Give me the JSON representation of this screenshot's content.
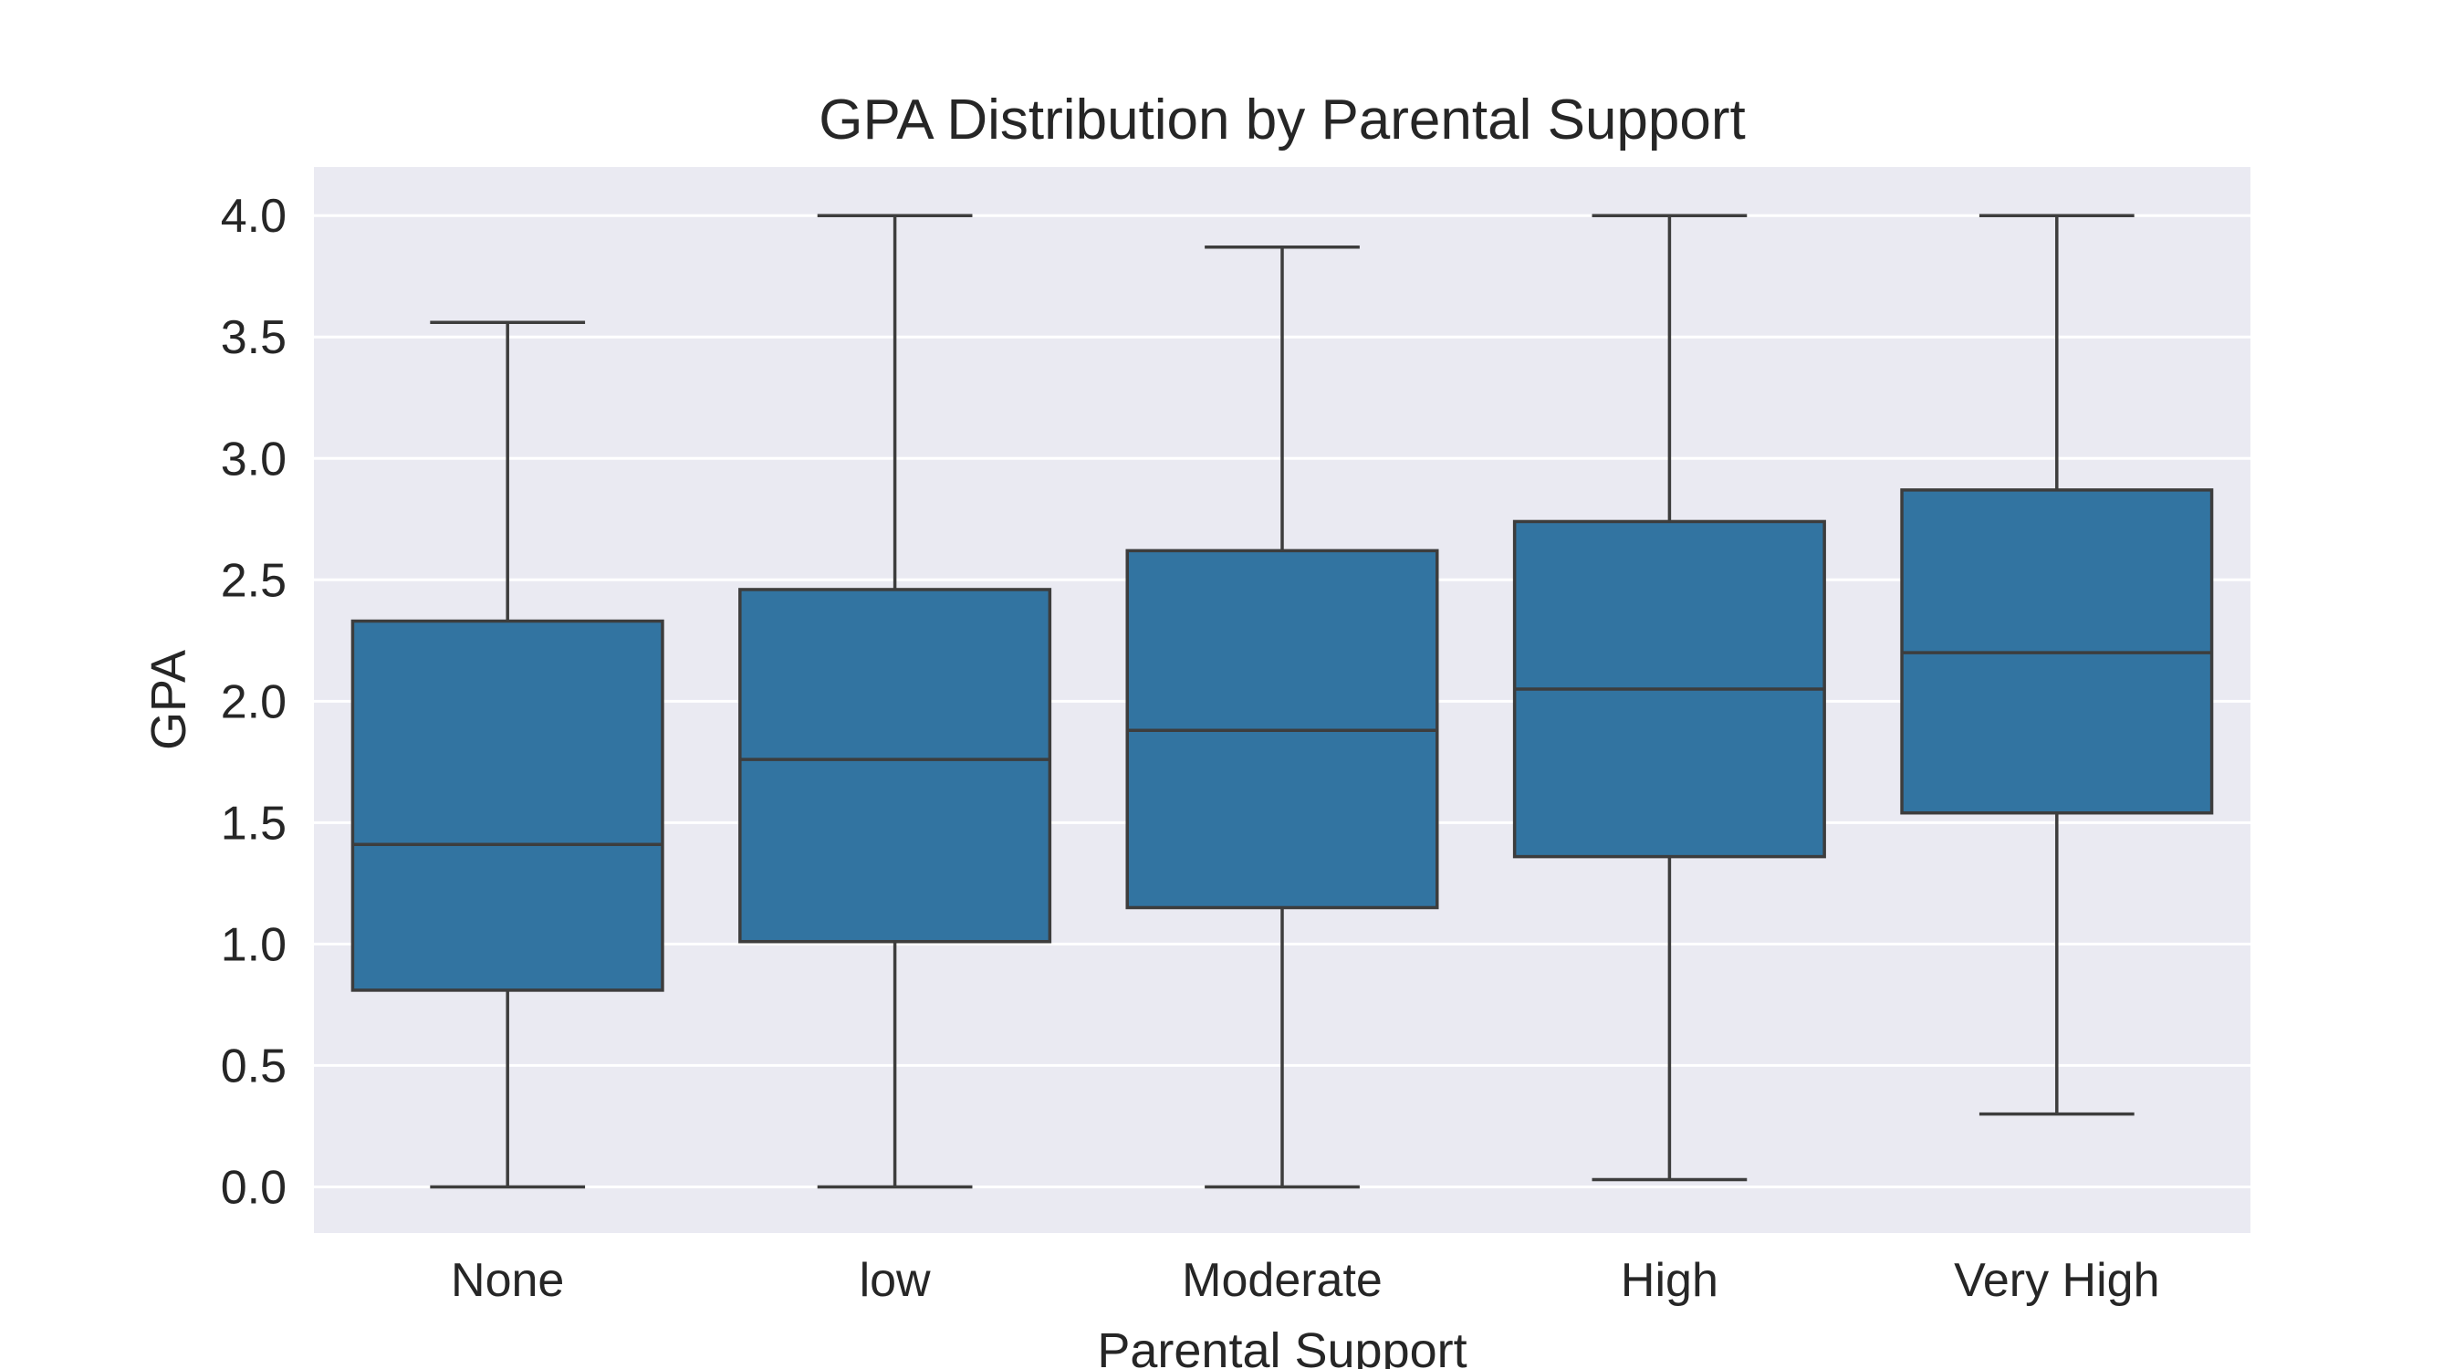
{
  "chart_data": {
    "type": "box",
    "title": "GPA Distribution by Parental Support",
    "xlabel": "Parental Support",
    "ylabel": "GPA",
    "categories": [
      "None",
      "low",
      "Moderate",
      "High",
      "Very High"
    ],
    "boxes": [
      {
        "category": "None",
        "whisker_low": 0.0,
        "q1": 0.81,
        "median": 1.41,
        "q3": 2.33,
        "whisker_high": 3.56
      },
      {
        "category": "low",
        "whisker_low": 0.0,
        "q1": 1.01,
        "median": 1.76,
        "q3": 2.46,
        "whisker_high": 4.0
      },
      {
        "category": "Moderate",
        "whisker_low": 0.0,
        "q1": 1.15,
        "median": 1.88,
        "q3": 2.62,
        "whisker_high": 3.87
      },
      {
        "category": "High",
        "whisker_low": 0.03,
        "q1": 1.36,
        "median": 2.05,
        "q3": 2.74,
        "whisker_high": 4.0
      },
      {
        "category": "Very High",
        "whisker_low": 0.3,
        "q1": 1.54,
        "median": 2.2,
        "q3": 2.87,
        "whisker_high": 4.0
      }
    ],
    "yticks": [
      "0.0",
      "0.5",
      "1.0",
      "1.5",
      "2.0",
      "2.5",
      "3.0",
      "3.5",
      "4.0"
    ],
    "ylim": [
      -0.19,
      4.2
    ],
    "grid": true,
    "colors": {
      "box_fill": "#3274a1",
      "line": "#3d3d3d",
      "plot_background": "#eaeaf2",
      "grid": "#ffffff"
    }
  }
}
